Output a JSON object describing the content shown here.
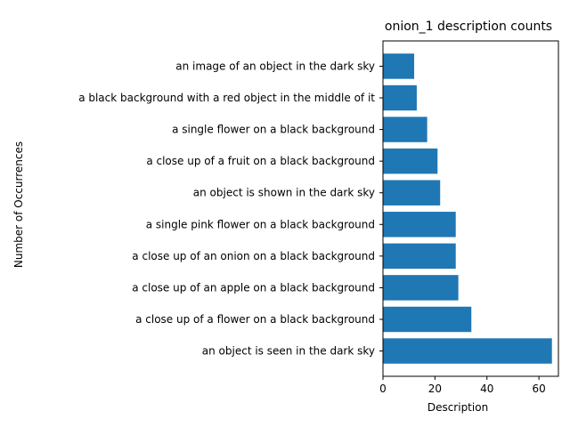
{
  "chart_data": {
    "type": "bar",
    "orientation": "horizontal",
    "title": "onion_1 description counts",
    "xlabel": "Description",
    "ylabel": "Number of Occurrences",
    "xlim": [
      0,
      67.5
    ],
    "xticks": [
      0,
      20,
      40,
      60
    ],
    "grid": false,
    "legend": "none",
    "bar_color": "#1f77b4",
    "categories": [
      "an object is seen in the dark sky",
      "a close up of a flower on a black background",
      "a close up of an apple on a black background",
      "a close up of an onion on a black background",
      "a single pink flower on a black background",
      "an object is shown in the dark sky",
      "a close up of a fruit on a black background",
      "a single flower on a black background",
      "a black background with a red object in the middle of it",
      "an image of an object in the dark sky"
    ],
    "values": [
      65,
      34,
      29,
      28,
      28,
      22,
      21,
      17,
      13,
      12
    ]
  }
}
